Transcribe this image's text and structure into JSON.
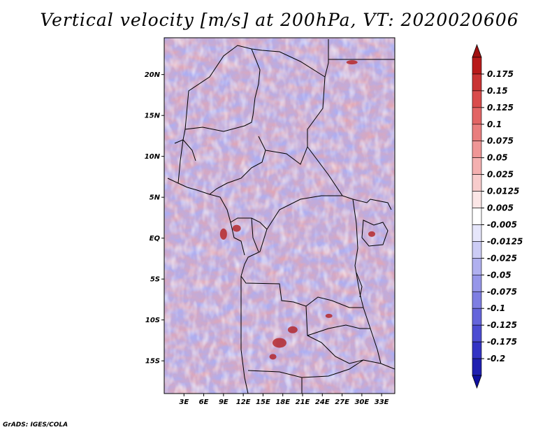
{
  "title": "Vertical velocity [m/s] at 200hPa, VT: 2020020606",
  "credit": "GrADS: IGES/COLA",
  "lat_labels": [
    "20N",
    "15N",
    "10N",
    "5N",
    "EQ",
    "5S",
    "10S",
    "15S"
  ],
  "lat_values": [
    20,
    15,
    10,
    5,
    0,
    -5,
    -10,
    -15
  ],
  "lon_labels": [
    "3E",
    "6E",
    "9E",
    "12E",
    "15E",
    "18E",
    "21E",
    "24E",
    "27E",
    "30E",
    "33E"
  ],
  "lon_values": [
    3,
    6,
    9,
    12,
    15,
    18,
    21,
    24,
    27,
    30,
    33
  ],
  "extent": {
    "lon_min": 0,
    "lon_max": 35,
    "lat_min": -19,
    "lat_max": 24.5
  },
  "colorbar": {
    "labels": [
      "0.175",
      "0.15",
      "0.125",
      "0.1",
      "0.075",
      "0.05",
      "0.025",
      "0.0125",
      "0.005",
      "-0.005",
      "-0.0125",
      "-0.025",
      "-0.05",
      "-0.075",
      "-0.1",
      "-0.125",
      "-0.175",
      "-0.2"
    ],
    "colors": [
      "#b81a1a",
      "#c93333",
      "#d94c4c",
      "#e26565",
      "#e97e7e",
      "#ef9696",
      "#f4b0b0",
      "#f8cccc",
      "#fbe6e6",
      "#ffffff",
      "#e6e6fb",
      "#ccccf5",
      "#b0b0ef",
      "#9696e9",
      "#7e7ee2",
      "#6565db",
      "#4c4cd2",
      "#3333c4",
      "#1f1fb0"
    ],
    "top_arrow_color": "#a11010",
    "bottom_arrow_color": "#1010a0"
  }
}
